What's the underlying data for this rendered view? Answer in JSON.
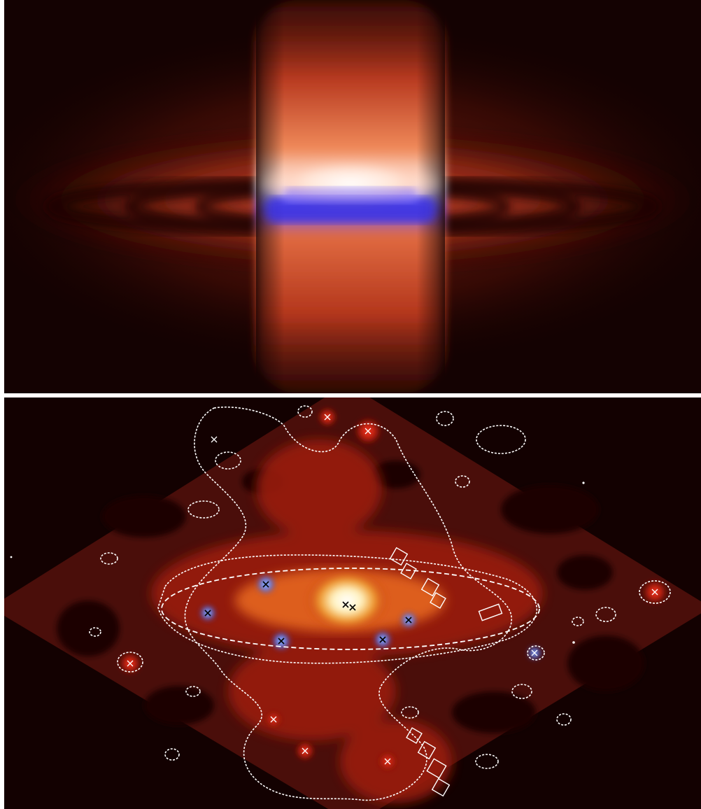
{
  "figure": {
    "top_panel": {
      "description_icon": "simulated-emission-image"
    },
    "bottom_panel": {
      "description_icon": "xray-contour-map"
    }
  },
  "colors": {
    "background_top": "#140202",
    "background_bottom": "#130101",
    "divider": "#ffffff",
    "glow_red": "#c0301a",
    "glow_core": "#ffffff",
    "glow_blue": "#4a3cff",
    "contour": "#ffffff"
  }
}
